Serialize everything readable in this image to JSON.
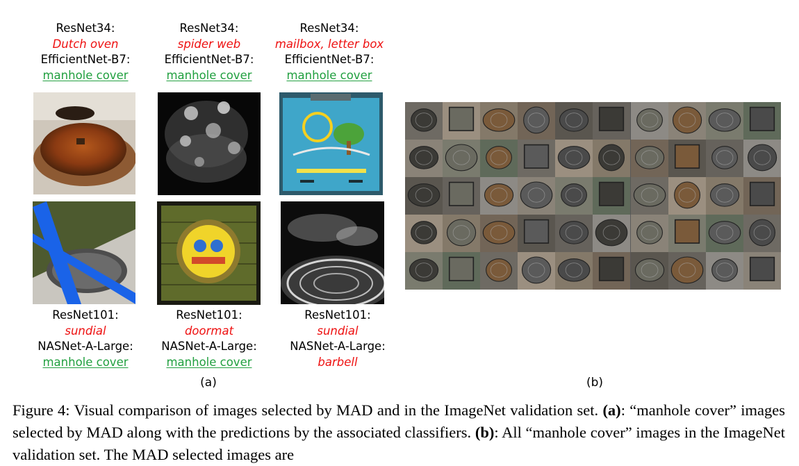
{
  "panel_a": {
    "columns": [
      {
        "top_model_1": "ResNet34:",
        "top_pred_1": "Dutch oven",
        "top_model_2": "EfficientNet-B7:",
        "top_pred_2": "manhole cover",
        "bottom_model_1": "ResNet101:",
        "bottom_pred_1": "sundial",
        "bottom_model_2": "NASNet-A-Large:",
        "bottom_pred_2": "manhole cover"
      },
      {
        "top_model_1": "ResNet34:",
        "top_pred_1": "spider web",
        "top_model_2": "EfficientNet-B7:",
        "top_pred_2": "manhole cover",
        "bottom_model_1": "ResNet101:",
        "bottom_pred_1": "doormat",
        "bottom_model_2": "NASNet-A-Large:",
        "bottom_pred_2": "manhole cover"
      },
      {
        "top_model_1": "ResNet34:",
        "top_pred_1": "mailbox, letter box",
        "top_model_2": "EfficientNet-B7:",
        "top_pred_2": "manhole cover",
        "bottom_model_1": "ResNet101:",
        "bottom_pred_1": "sundial",
        "bottom_model_2": "NASNet-A-Large:",
        "bottom_pred_2": "barbell"
      }
    ],
    "sublabel": "(a)",
    "correct_color": "#22a040",
    "wrong_color": "#ee1111"
  },
  "panel_b": {
    "sublabel": "(b)",
    "grid_rows": 5,
    "grid_cols": 10
  },
  "caption": {
    "prefix": "Figure 4: Visual comparison of images selected by MAD and in the ImageNet validation set. ",
    "a_tag": "(a)",
    "a_text": ": “manhole cover” images selected by MAD along with the predictions by the associated classifiers. ",
    "b_tag": "(b)",
    "b_text": ": All “manhole cover” images in the ImageNet validation set. The MAD selected images are"
  }
}
